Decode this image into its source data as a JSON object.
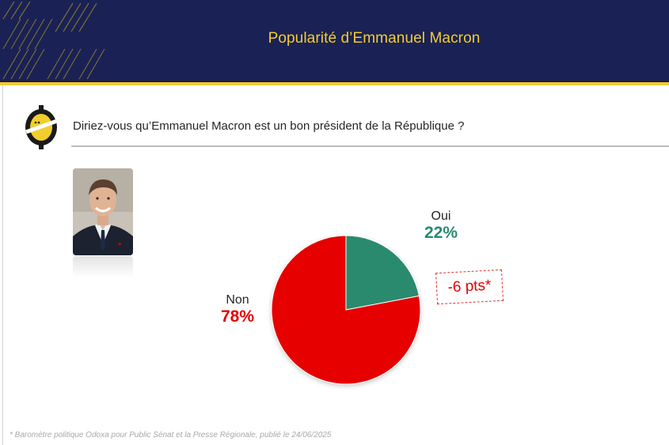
{
  "header": {
    "title": "Popularité d’Emmanuel Macron"
  },
  "question": "Diriez-vous qu’Emmanuel Macron est un bon président de la République ?",
  "chart_data": {
    "type": "pie",
    "title": "",
    "slices": [
      {
        "label": "Oui",
        "value": 22,
        "value_label": "22%",
        "color": "#2a8a6e"
      },
      {
        "label": "Non",
        "value": 78,
        "value_label": "78%",
        "color": "#e60000"
      }
    ],
    "annotation": "-6 pts*"
  },
  "footnote": "* Baromètre politique Odoxa pour Public Sénat et la Presse Régionale, publié le 24/06/2025",
  "colors": {
    "header_bg": "#1a2155",
    "accent_yellow": "#f2cd2d",
    "oui_green": "#2a8a6e",
    "non_red": "#e60000"
  },
  "icons": {
    "logo": "odoxa-logo-icon",
    "photo": "portrait-photo"
  }
}
